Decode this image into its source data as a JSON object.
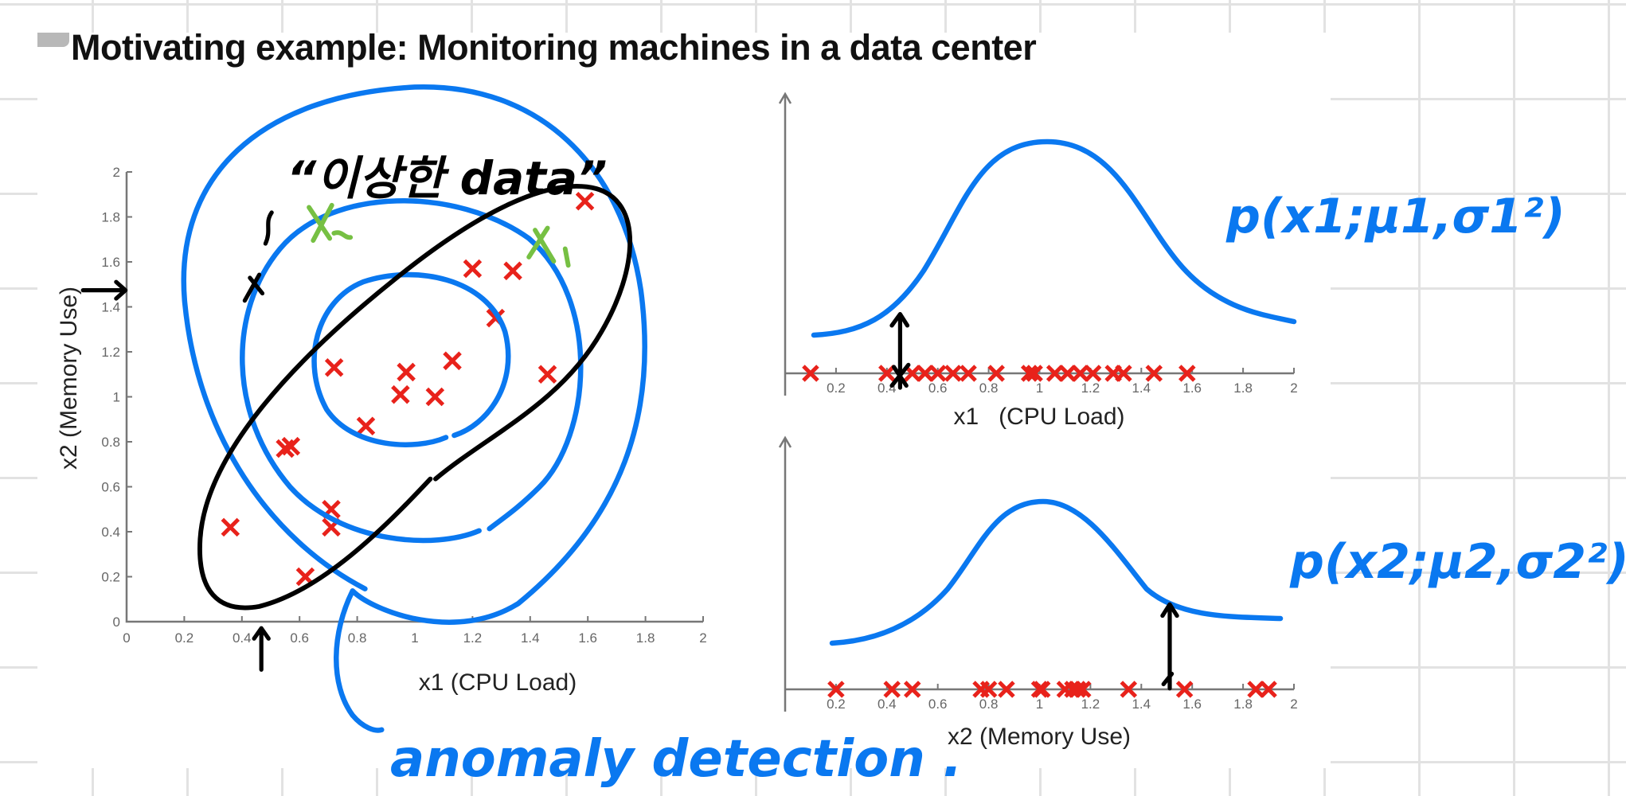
{
  "slide": {
    "title": "Motivating example: Monitoring machines in a data center"
  },
  "annotations": {
    "strange_data_note": "“이상한 data”",
    "anomaly_label_x1": "x1",
    "anomaly_label_x2": "x2",
    "pdf_x1": "p(x1;μ1,σ1²)",
    "pdf_x2": "p(x2;μ2,σ2²)",
    "anomaly_detection": "anomaly detection .",
    "ink_blue": "#0a78f0",
    "ink_black": "#000000",
    "ink_green": "#76c043"
  },
  "colors": {
    "marker": "#e8221b",
    "axis": "#777777",
    "curve": "#0a78f0"
  },
  "chart_data": [
    {
      "type": "scatter",
      "xlabel": "x1 (CPU Load)",
      "ylabel": "x2 (Memory Use)",
      "xlim": [
        0,
        2
      ],
      "ylim": [
        0,
        2
      ],
      "xticks": [
        "0",
        "0.2",
        "0.4",
        "0.6",
        "0.8",
        "1",
        "1.2",
        "1.4",
        "1.6",
        "1.8",
        "2"
      ],
      "yticks": [
        "0",
        "0.2",
        "0.4",
        "0.6",
        "0.8",
        "1",
        "1.2",
        "1.4",
        "1.6",
        "1.8",
        "2"
      ],
      "marker": "x",
      "points": [
        [
          0.36,
          0.42
        ],
        [
          0.55,
          0.77
        ],
        [
          0.57,
          0.78
        ],
        [
          0.62,
          0.2
        ],
        [
          0.71,
          0.5
        ],
        [
          0.71,
          0.42
        ],
        [
          0.72,
          1.13
        ],
        [
          0.83,
          0.87
        ],
        [
          0.95,
          1.01
        ],
        [
          0.97,
          1.11
        ],
        [
          1.07,
          1.0
        ],
        [
          1.13,
          1.16
        ],
        [
          1.2,
          1.57
        ],
        [
          1.28,
          1.35
        ],
        [
          1.34,
          1.56
        ],
        [
          1.46,
          1.1
        ],
        [
          1.59,
          1.87
        ]
      ],
      "annotated_points": [
        {
          "label": "x1",
          "x": 1.46,
          "y": 1.67
        },
        {
          "label": "x2",
          "x": 0.69,
          "y": 1.79
        }
      ]
    },
    {
      "type": "scatter",
      "xlabel": "x1   (CPU Load)",
      "xlim": [
        0,
        2
      ],
      "xticks": [
        "0.2",
        "0.4",
        "0.6",
        "0.8",
        "1",
        "1.2",
        "1.4",
        "1.6",
        "1.8",
        "2"
      ],
      "marker": "x",
      "values": [
        0.1,
        0.4,
        0.5,
        0.55,
        0.6,
        0.66,
        0.72,
        0.83,
        0.96,
        0.98,
        1.06,
        1.11,
        1.16,
        1.21,
        1.29,
        1.33,
        1.45,
        1.58
      ],
      "curve": "gaussian"
    },
    {
      "type": "scatter",
      "xlabel": "x2 (Memory Use)",
      "xlim": [
        0,
        2
      ],
      "xticks": [
        "0.2",
        "0.4",
        "0.6",
        "0.8",
        "1",
        "1.2",
        "1.4",
        "1.6",
        "1.8",
        "2"
      ],
      "marker": "x",
      "values": [
        0.2,
        0.42,
        0.5,
        0.77,
        0.8,
        0.87,
        1.0,
        1.01,
        1.1,
        1.13,
        1.15,
        1.17,
        1.35,
        1.57,
        1.85,
        1.9
      ],
      "curve": "gaussian"
    }
  ]
}
